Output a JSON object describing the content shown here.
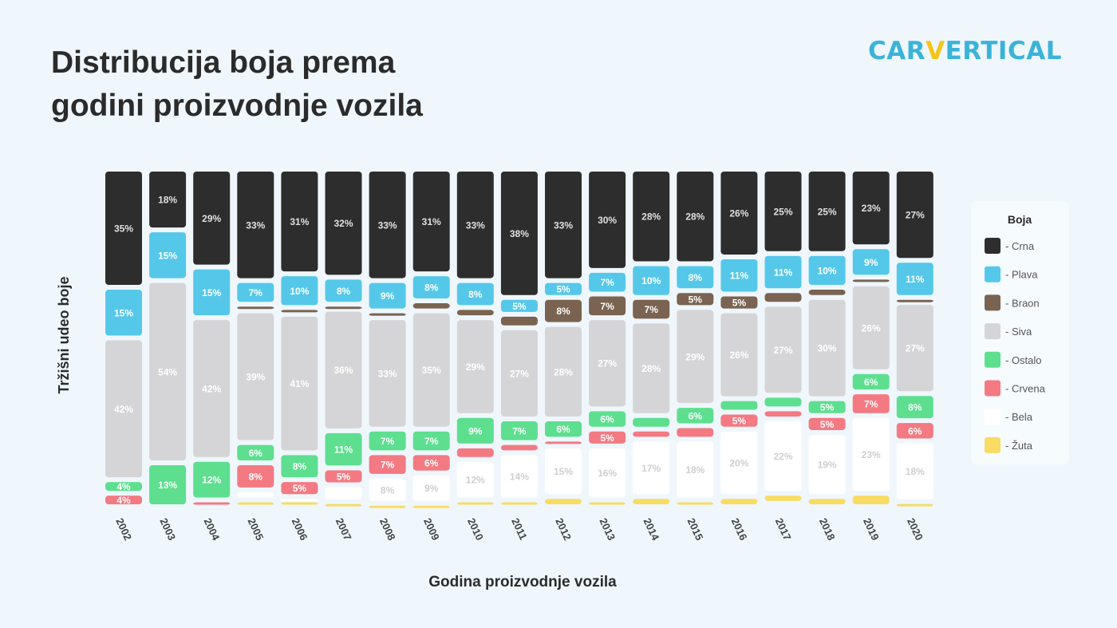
{
  "title_lines": [
    "Distribucija boja prema",
    "godini proizvodnje vozila"
  ],
  "logo": {
    "before": "CAR",
    "v": "V",
    "after": "ERTICAL"
  },
  "chart_data": {
    "type": "bar",
    "stacked": true,
    "xlabel": "Godina proizvodnje vozila",
    "ylabel": "Tržišni udeo boje",
    "ylim": [
      0,
      100
    ],
    "grid": false,
    "legend_position": "right",
    "legend_title": "Boja",
    "categories": [
      "2002",
      "2003",
      "2004",
      "2005",
      "2006",
      "2007",
      "2008",
      "2009",
      "2010",
      "2011",
      "2012",
      "2013",
      "2014",
      "2015",
      "2016",
      "2017",
      "2018",
      "2019",
      "2020"
    ],
    "series": [
      {
        "name": "Crna",
        "legend": "- Crna",
        "color": "#2d2d2d",
        "label_color": "#e0e0e0",
        "values": [
          35,
          18,
          29,
          33,
          31,
          32,
          33,
          31,
          33,
          38,
          33,
          30,
          28,
          28,
          26,
          25,
          25,
          23,
          27
        ],
        "labels": [
          "35%",
          "18%",
          "29%",
          "33%",
          "31%",
          "32%",
          "33%",
          "31%",
          "33%",
          "38%",
          "33%",
          "30%",
          "28%",
          "28%",
          "26%",
          "25%",
          "25%",
          "23%",
          "27%"
        ]
      },
      {
        "name": "Plava",
        "legend": "- Plava",
        "color": "#55c8ea",
        "label_color": "#ffffff",
        "values": [
          15,
          15,
          15,
          7,
          10,
          8,
          9,
          8,
          8,
          5,
          5,
          7,
          10,
          8,
          11,
          11,
          10,
          9,
          11
        ],
        "labels": [
          "15%",
          "15%",
          "15%",
          "7%",
          "10%",
          "8%",
          "9%",
          "8%",
          "8%",
          "5%",
          "5%",
          "7%",
          "10%",
          "8%",
          "11%",
          "11%",
          "10%",
          "9%",
          "11%"
        ]
      },
      {
        "name": "Braon",
        "legend": "- Braon",
        "color": "#7a6350",
        "label_color": "#ffffff",
        "values": [
          0,
          0,
          0,
          2,
          2,
          1.5,
          2,
          3,
          3,
          4,
          8,
          7,
          7,
          5,
          5,
          4,
          3,
          2,
          1.5
        ],
        "labels": [
          "",
          "",
          "",
          "",
          "",
          "",
          "",
          "",
          "",
          "",
          "8%",
          "7%",
          "7%",
          "5%",
          "5%",
          "",
          "",
          "",
          ""
        ]
      },
      {
        "name": "Siva",
        "legend": "- Siva",
        "color": "#d5d5d7",
        "label_color": "#ffffff",
        "values": [
          42,
          54,
          42,
          39,
          41,
          36,
          33,
          35,
          29,
          27,
          28,
          27,
          28,
          29,
          26,
          27,
          30,
          26,
          27
        ],
        "labels": [
          "42%",
          "54%",
          "42%",
          "39%",
          "41%",
          "36%",
          "33%",
          "35%",
          "29%",
          "27%",
          "28%",
          "27%",
          "28%",
          "29%",
          "26%",
          "27%",
          "30%",
          "26%",
          "27%"
        ]
      },
      {
        "name": "Ostalo",
        "legend": "- Ostalo",
        "color": "#5ddf8f",
        "label_color": "#ffffff",
        "values": [
          4,
          13,
          12,
          6,
          8,
          11,
          7,
          7,
          9,
          7,
          6,
          6,
          4,
          6,
          4,
          4,
          5,
          6,
          8
        ],
        "labels": [
          "4%",
          "13%",
          "12%",
          "6%",
          "8%",
          "11%",
          "7%",
          "7%",
          "9%",
          "7%",
          "6%",
          "6%",
          "",
          "6%",
          "",
          "",
          "5%",
          "6%",
          "8%"
        ]
      },
      {
        "name": "Crvena",
        "legend": "- Crvena",
        "color": "#f37a82",
        "label_color": "#ffffff",
        "values": [
          4,
          0,
          2,
          8,
          5,
          5,
          7,
          6,
          4,
          3,
          2,
          5,
          3,
          4,
          5,
          3,
          5,
          7,
          6
        ],
        "labels": [
          "4%",
          "",
          "",
          "8%",
          "5%",
          "5%",
          "7%",
          "6%",
          "",
          "",
          "",
          "5%",
          "",
          "",
          "5%",
          "",
          "5%",
          "7%",
          "6%"
        ]
      },
      {
        "name": "Bela",
        "legend": "- Bela",
        "color": "#ffffff",
        "label_color": "#cfcfcf",
        "values": [
          0,
          0,
          0,
          3,
          1,
          5,
          8,
          9,
          12,
          14,
          15,
          16,
          17,
          18,
          20,
          22,
          19,
          23,
          18
        ],
        "labels": [
          "",
          "",
          "",
          "",
          "",
          "",
          "8%",
          "9%",
          "12%",
          "14%",
          "15%",
          "16%",
          "17%",
          "18%",
          "20%",
          "22%",
          "19%",
          "23%",
          "18%"
        ]
      },
      {
        "name": "Žuta",
        "legend": "- Žuta",
        "color": "#f8dc63",
        "label_color": "#ffffff",
        "values": [
          0,
          0,
          0,
          2,
          2,
          1.5,
          1,
          1,
          2,
          2,
          3,
          2,
          3,
          2,
          3,
          3,
          3,
          4,
          1.5
        ],
        "labels": [
          "",
          "",
          "",
          "",
          "",
          "",
          "",
          "",
          "",
          "",
          "",
          "",
          "",
          "",
          "",
          "",
          "",
          "",
          ""
        ]
      }
    ]
  }
}
